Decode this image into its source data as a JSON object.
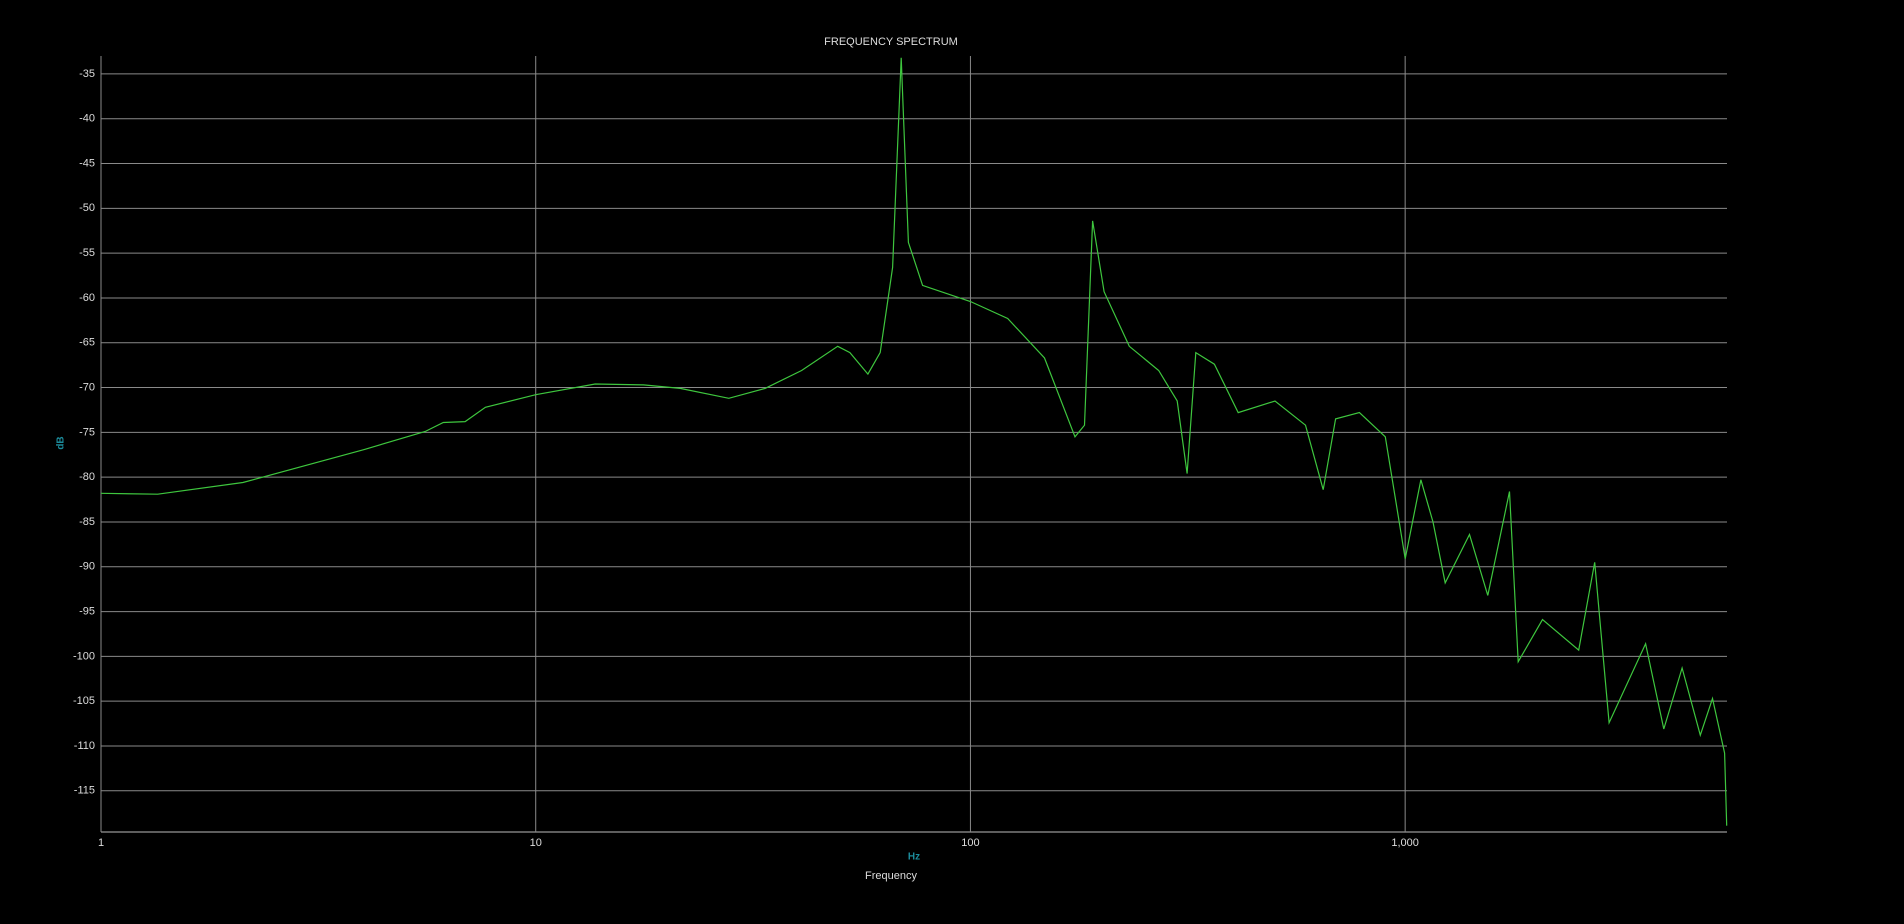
{
  "chart_data": {
    "type": "line",
    "title": "FREQUENCY SPECTRUM",
    "x_label": "Frequency",
    "x_unit": "Hz",
    "y_label": "dB",
    "log_x": true,
    "grid": true,
    "xlim": [
      1,
      5500
    ],
    "xticks": [
      1,
      10,
      100,
      {
        "value": 1000,
        "label": "1,000"
      }
    ],
    "ylim": [
      -119.6,
      -33
    ],
    "yticks": [
      -35,
      -40,
      -45,
      -50,
      -55,
      -60,
      -65,
      -70,
      -75,
      -80,
      -85,
      -90,
      -95,
      -100,
      -105,
      -110,
      -115
    ],
    "x": [
      1,
      1.35,
      2.12,
      4.04,
      5.57,
      6.13,
      6.88,
      7.66,
      10,
      13.7,
      17.7,
      21.5,
      27.8,
      33.7,
      40.9,
      49.5,
      52.8,
      58.1,
      62,
      66.2,
      69.3,
      72,
      77.6,
      100,
      121.8,
      148,
      174,
      183,
      191,
      203,
      232,
      271,
      299,
      315,
      330,
      364,
      413,
      502,
      590,
      648,
      692,
      785,
      900,
      1000,
      1087,
      1159,
      1236,
      1406,
      1549,
      1738,
      1820,
      2070,
      2507,
      2729,
      2945,
      3573,
      3936,
      4335,
      4775,
      5093,
      5430,
      5490
    ],
    "series": [
      {
        "color": "#3ec63e",
        "values": [
          -81.8,
          -81.9,
          -80.6,
          -76.9,
          -74.9,
          -73.9,
          -73.8,
          -72.2,
          -70.8,
          -69.6,
          -69.7,
          -70.1,
          -71.2,
          -70.1,
          -68.1,
          -65.4,
          -66.1,
          -68.5,
          -66.1,
          -56.6,
          -33.2,
          -53.8,
          -58.6,
          -60.4,
          -62.3,
          -66.7,
          -75.5,
          -74.2,
          -51.4,
          -59.3,
          -65.4,
          -68.1,
          -71.5,
          -79.6,
          -66.1,
          -67.4,
          -72.8,
          -71.5,
          -74.2,
          -81.4,
          -73.5,
          -72.8,
          -75.5,
          -89.1,
          -80.3,
          -85,
          -91.8,
          -86.4,
          -93.2,
          -81.6,
          -100.6,
          -95.9,
          -99.3,
          -89.5,
          -107.4,
          -98.6,
          -108.1,
          -101.3,
          -108.8,
          -104.7,
          -110.8,
          -118.9
        ]
      }
    ]
  }
}
